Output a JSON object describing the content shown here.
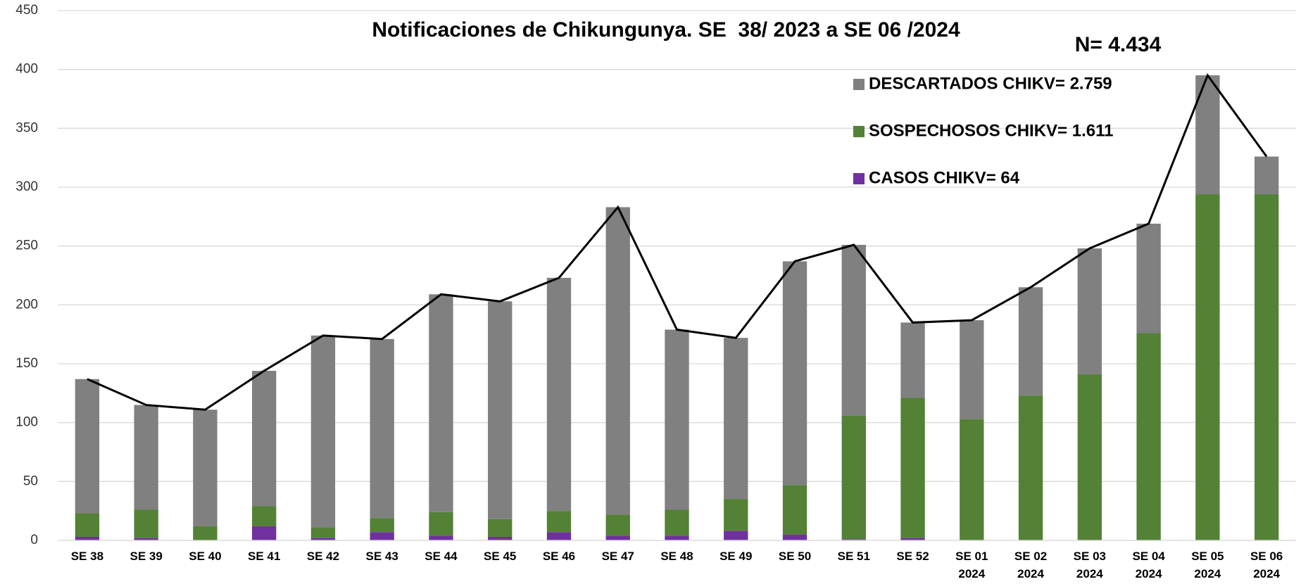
{
  "chart_data": {
    "type": "stacked_bar_line",
    "title": "Notificaciones de Chikungunya. SE  38/ 2023 a SE 06 /2024",
    "annotation": "N= 4.434",
    "categories": [
      "SE 38",
      "SE 39",
      "SE 40",
      "SE 41",
      "SE 42",
      "SE 43",
      "SE 44",
      "SE 45",
      "SE 46",
      "SE 47",
      "SE 48",
      "SE 49",
      "SE 50",
      "SE 51",
      "SE 52",
      "SE 01 2024",
      "SE 02 2024",
      "SE 03 2024",
      "SE 04 2024",
      "SE 05 2024",
      "SE 06 2024"
    ],
    "series": [
      {
        "name": "CASOS CHIKV= 64",
        "color": "#7030a0",
        "values": [
          3,
          2,
          0,
          12,
          2,
          7,
          4,
          3,
          7,
          4,
          4,
          8,
          5,
          1,
          2,
          0,
          0,
          0,
          0,
          0,
          0
        ]
      },
      {
        "name": "SOSPECHOSOS CHIKV= 1.611",
        "color": "#538135",
        "values": [
          20,
          24,
          12,
          17,
          9,
          12,
          20,
          15,
          18,
          18,
          22,
          27,
          42,
          105,
          119,
          103,
          123,
          141,
          176,
          294,
          294
        ]
      },
      {
        "name": "DESCARTADOS CHIKV= 2.759",
        "color": "#808080",
        "values": [
          114,
          89,
          99,
          115,
          163,
          152,
          185,
          185,
          198,
          261,
          153,
          137,
          190,
          145,
          64,
          84,
          92,
          107,
          93,
          101,
          32
        ]
      }
    ],
    "total_line": {
      "color": "#000000",
      "values": [
        137,
        115,
        111,
        144,
        174,
        171,
        209,
        203,
        223,
        283,
        179,
        172,
        237,
        251,
        185,
        187,
        215,
        248,
        269,
        395,
        326
      ]
    },
    "ylim": [
      0,
      450
    ],
    "yticks": [
      0,
      50,
      100,
      150,
      200,
      250,
      300,
      350,
      400,
      450
    ],
    "grid": true
  }
}
